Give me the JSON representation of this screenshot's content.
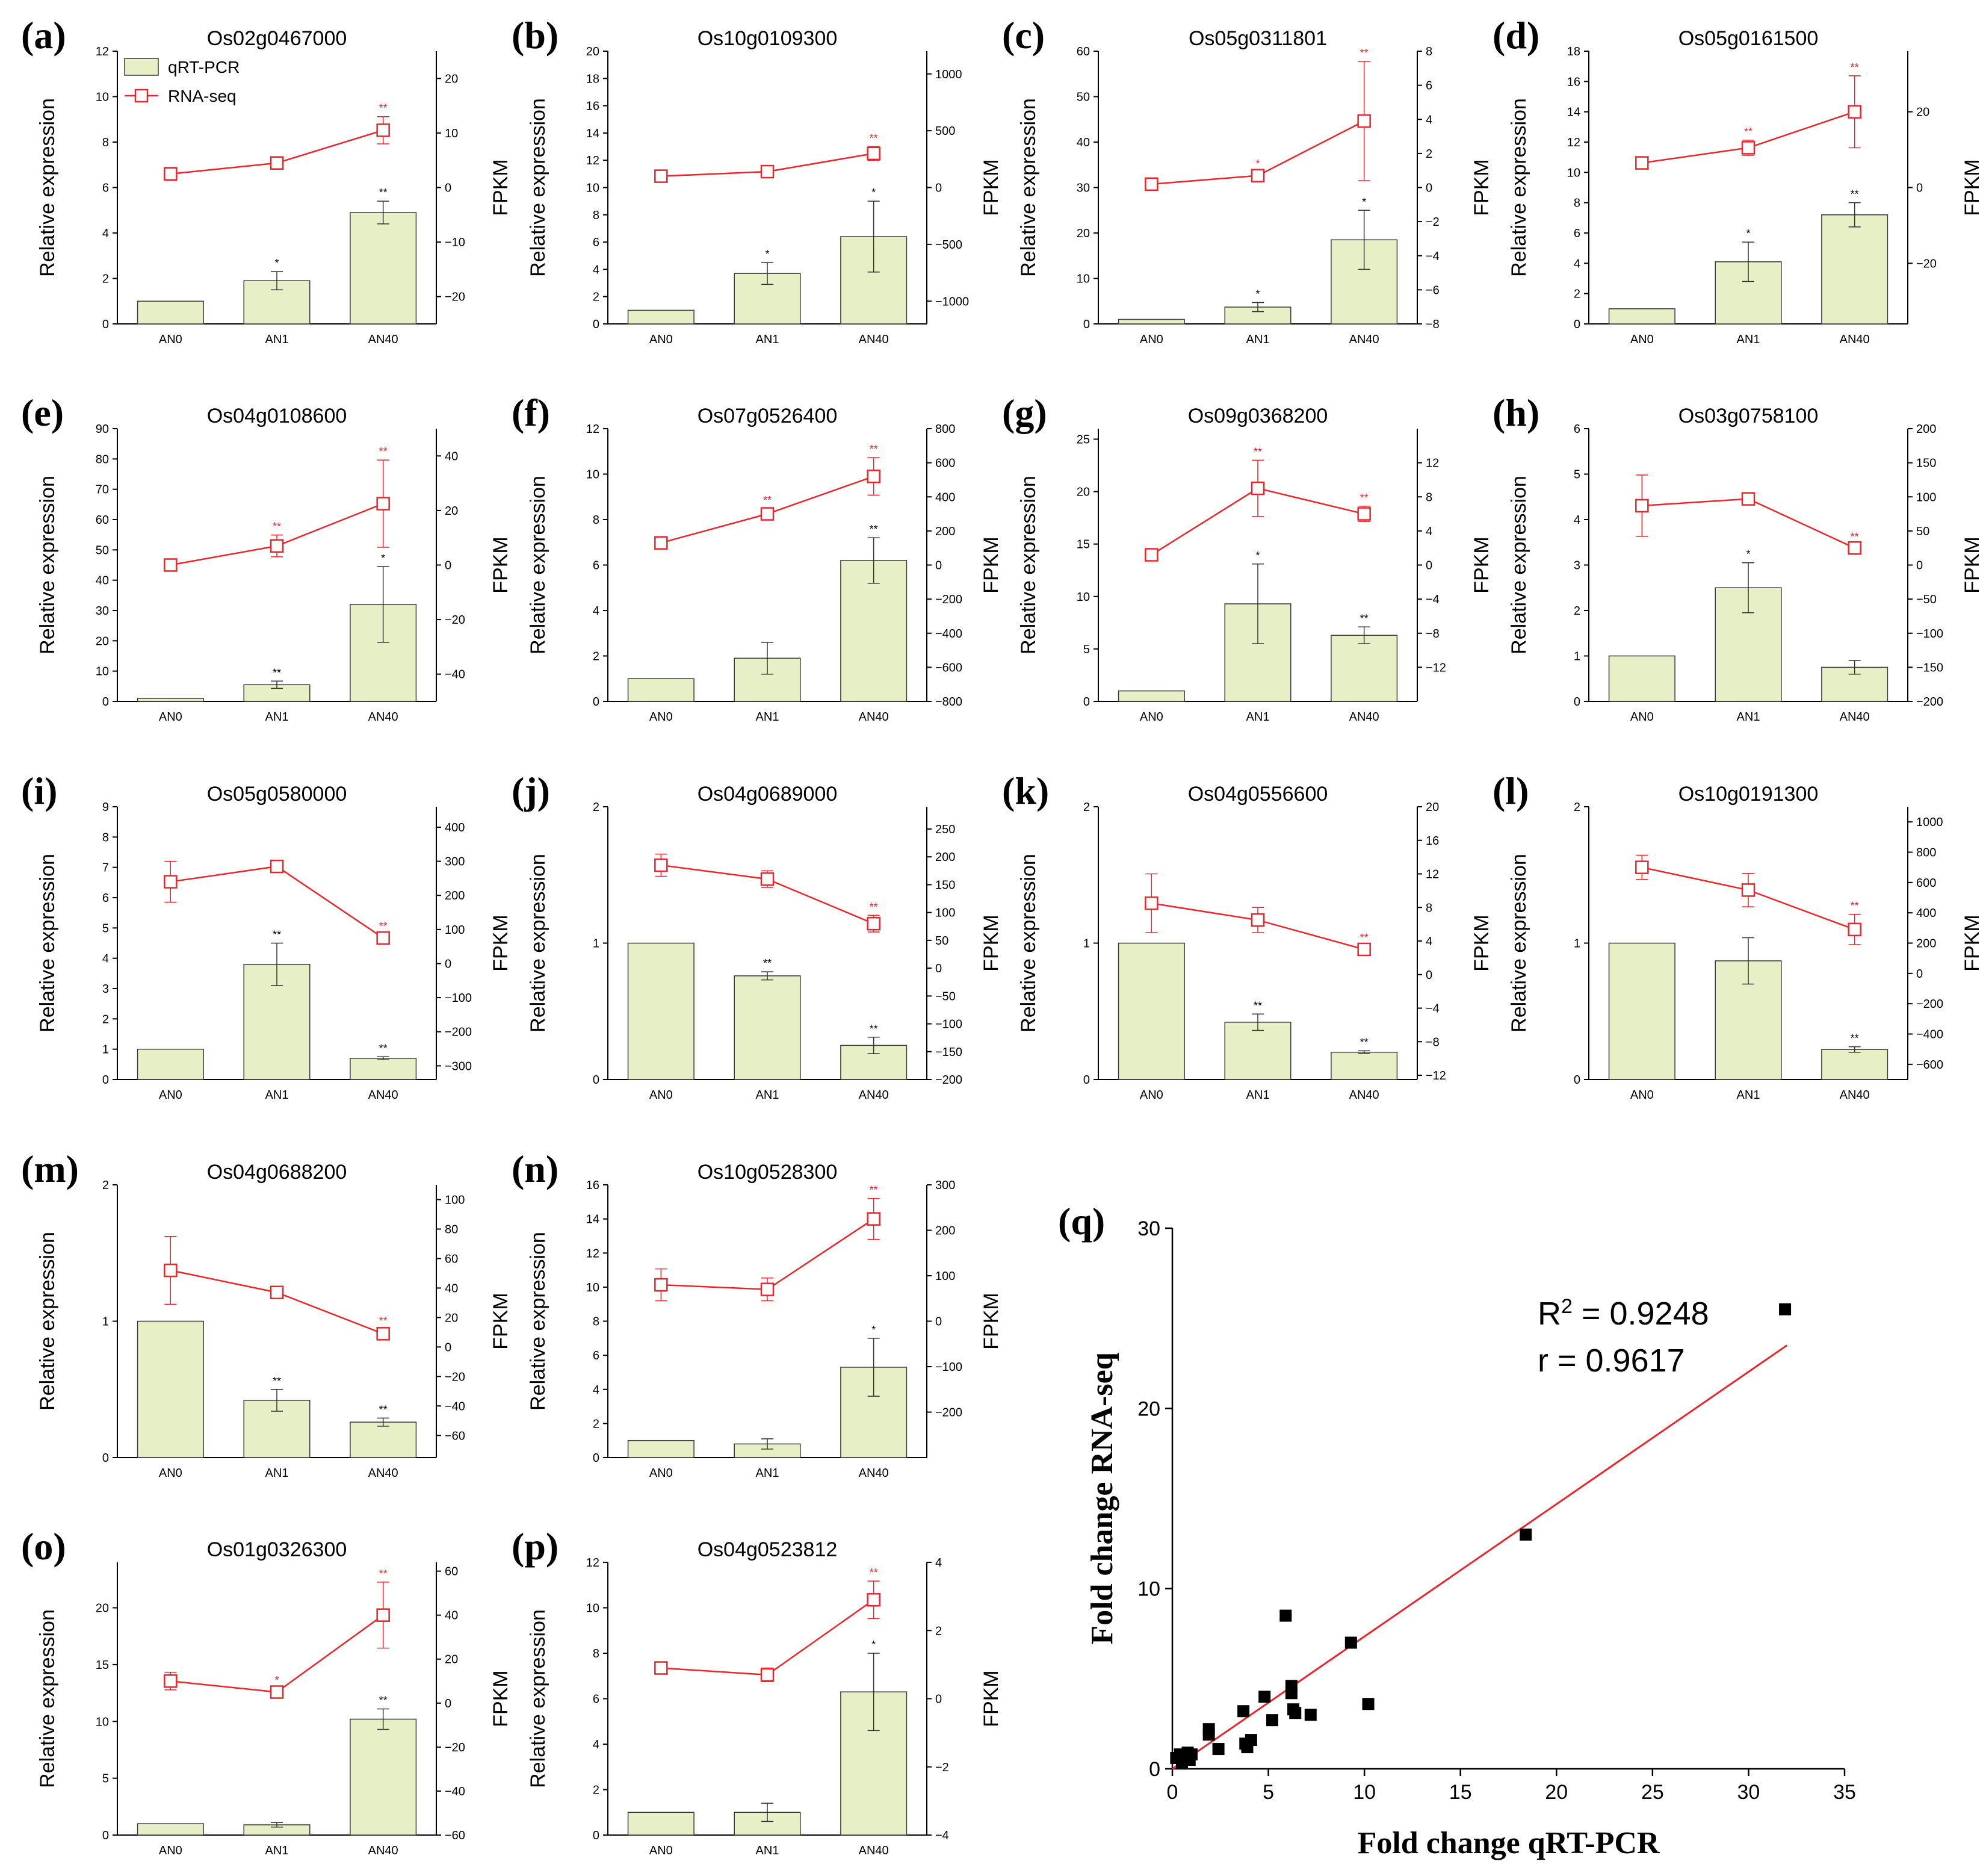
{
  "figure": {
    "y_left_label": "Relative expression",
    "y_right_label": "FPKM",
    "legend": {
      "bar_label": "qRT-PCR",
      "line_label": "RNA-seq"
    },
    "colors": {
      "bar_fill": "#e6efc6",
      "bar_stroke": "#3a3a3a",
      "line": "#e8262c"
    }
  },
  "chart_data": [
    {
      "type": "bar+line",
      "letter": "(a)",
      "title": "Os02g0467000",
      "categories": [
        "AN0",
        "AN1",
        "AN40"
      ],
      "left_axis": {
        "min": 0,
        "max": 12,
        "ticks": [
          0,
          2,
          4,
          6,
          8,
          10,
          12
        ]
      },
      "right_axis": {
        "min": -25,
        "max": 25,
        "ticks": [
          -20,
          -10,
          0,
          10,
          20
        ]
      },
      "bars": [
        1,
        1.9,
        4.9
      ],
      "bar_err": [
        0,
        0.4,
        0.5
      ],
      "bar_sig": [
        "",
        "*",
        "**"
      ],
      "line": [
        2.5,
        4.5,
        10.5
      ],
      "line_err": [
        1.2,
        0.8,
        2.5
      ],
      "line_sig": [
        "",
        "",
        "**"
      ],
      "legend": true
    },
    {
      "type": "bar+line",
      "letter": "(b)",
      "title": "Os10g0109300",
      "categories": [
        "AN0",
        "AN1",
        "AN40"
      ],
      "left_axis": {
        "min": 0,
        "max": 20,
        "ticks": [
          0,
          2,
          4,
          6,
          8,
          10,
          12,
          14,
          16,
          18,
          20
        ]
      },
      "right_axis": {
        "min": -1200,
        "max": 1200,
        "ticks": [
          -1000,
          -500,
          0,
          500,
          1000
        ]
      },
      "bars": [
        1,
        3.7,
        6.4
      ],
      "bar_err": [
        0,
        0.8,
        2.6
      ],
      "bar_sig": [
        "",
        "*",
        "*"
      ],
      "line": [
        100,
        140,
        300
      ],
      "line_err": [
        40,
        30,
        60
      ],
      "line_sig": [
        "",
        "",
        "**"
      ]
    },
    {
      "type": "bar+line",
      "letter": "(c)",
      "title": "Os05g0311801",
      "categories": [
        "AN0",
        "AN1",
        "AN40"
      ],
      "left_axis": {
        "min": 0,
        "max": 60,
        "ticks": [
          0,
          10,
          20,
          30,
          40,
          50,
          60
        ]
      },
      "right_axis": {
        "min": -8,
        "max": 8,
        "ticks": [
          -8,
          -6,
          -4,
          -2,
          0,
          2,
          4,
          6,
          8
        ]
      },
      "bars": [
        1,
        3.7,
        18.5
      ],
      "bar_err": [
        0,
        1,
        6.5
      ],
      "bar_sig": [
        "",
        "*",
        "*"
      ],
      "line": [
        0.2,
        0.7,
        3.9
      ],
      "line_err": [
        0.2,
        0.2,
        3.5
      ],
      "line_sig": [
        "",
        "*",
        "**"
      ]
    },
    {
      "type": "bar+line",
      "letter": "(d)",
      "title": "Os05g0161500",
      "categories": [
        "AN0",
        "AN1",
        "AN40"
      ],
      "left_axis": {
        "min": 0,
        "max": 18,
        "ticks": [
          0,
          2,
          4,
          6,
          8,
          10,
          12,
          14,
          16,
          18
        ]
      },
      "right_axis": {
        "min": -36,
        "max": 36,
        "ticks": [
          -20,
          0,
          20
        ]
      },
      "bars": [
        1,
        4.1,
        7.2
      ],
      "bar_err": [
        0,
        1.3,
        0.8
      ],
      "bar_sig": [
        "",
        "*",
        "**"
      ],
      "line": [
        6.5,
        10.5,
        20
      ],
      "line_err": [
        1.5,
        2,
        9.5
      ],
      "line_sig": [
        "",
        "**",
        "**"
      ]
    },
    {
      "type": "bar+line",
      "letter": "(e)",
      "title": "Os04g0108600",
      "categories": [
        "AN0",
        "AN1",
        "AN40"
      ],
      "left_axis": {
        "min": 0,
        "max": 90,
        "ticks": [
          0,
          10,
          20,
          30,
          40,
          50,
          60,
          70,
          80,
          90
        ]
      },
      "right_axis": {
        "min": -50,
        "max": 50,
        "ticks": [
          -40,
          -20,
          0,
          20,
          40
        ]
      },
      "bars": [
        1,
        5.5,
        32
      ],
      "bar_err": [
        0,
        1.2,
        12.5
      ],
      "bar_sig": [
        "",
        "**",
        "*"
      ],
      "line": [
        0,
        7,
        22.5
      ],
      "line_err": [
        1,
        4,
        16
      ],
      "line_sig": [
        "",
        "**",
        "**"
      ]
    },
    {
      "type": "bar+line",
      "letter": "(f)",
      "title": "Os07g0526400",
      "categories": [
        "AN0",
        "AN1",
        "AN40"
      ],
      "left_axis": {
        "min": 0,
        "max": 12,
        "ticks": [
          0,
          2,
          4,
          6,
          8,
          10,
          12
        ]
      },
      "right_axis": {
        "min": -800,
        "max": 800,
        "ticks": [
          -800,
          -600,
          -400,
          -200,
          0,
          200,
          400,
          600,
          800
        ]
      },
      "bars": [
        1,
        1.9,
        6.2
      ],
      "bar_err": [
        0,
        0.7,
        1
      ],
      "bar_sig": [
        "",
        "",
        "**"
      ],
      "line": [
        130,
        300,
        520
      ],
      "line_err": [
        20,
        30,
        110
      ],
      "line_sig": [
        "",
        "**",
        "**"
      ]
    },
    {
      "type": "bar+line",
      "letter": "(g)",
      "title": "Os09g0368200",
      "categories": [
        "AN0",
        "AN1",
        "AN40"
      ],
      "left_axis": {
        "min": 0,
        "max": 26,
        "ticks": [
          0,
          5,
          10,
          15,
          20,
          25
        ]
      },
      "right_axis": {
        "min": -16,
        "max": 16,
        "ticks": [
          -12,
          -8,
          -4,
          0,
          4,
          8,
          12
        ]
      },
      "bars": [
        1,
        9.3,
        6.3
      ],
      "bar_err": [
        0,
        3.8,
        0.8
      ],
      "bar_sig": [
        "",
        "*",
        "**"
      ],
      "line": [
        1.2,
        9,
        6
      ],
      "line_err": [
        0.4,
        3.3,
        0.9
      ],
      "line_sig": [
        "",
        "**",
        "**"
      ]
    },
    {
      "type": "bar+line",
      "letter": "(h)",
      "title": "Os03g0758100",
      "categories": [
        "AN0",
        "AN1",
        "AN40"
      ],
      "left_axis": {
        "min": 0,
        "max": 6,
        "ticks": [
          0,
          1,
          2,
          3,
          4,
          5,
          6
        ]
      },
      "right_axis": {
        "min": -200,
        "max": 200,
        "ticks": [
          -200,
          -150,
          -100,
          -50,
          0,
          50,
          100,
          150,
          200
        ]
      },
      "bars": [
        1,
        2.5,
        0.75
      ],
      "bar_err": [
        0,
        0.55,
        0.15
      ],
      "bar_sig": [
        "",
        "*",
        ""
      ],
      "line": [
        87,
        97,
        25
      ],
      "line_err": [
        45,
        6,
        4
      ],
      "line_sig": [
        "",
        "",
        "**"
      ]
    },
    {
      "type": "bar+line",
      "letter": "(i)",
      "title": "Os05g0580000",
      "categories": [
        "AN0",
        "AN1",
        "AN40"
      ],
      "left_axis": {
        "min": 0,
        "max": 9,
        "ticks": [
          0,
          1,
          2,
          3,
          4,
          5,
          6,
          7,
          8,
          9
        ]
      },
      "right_axis": {
        "min": -340,
        "max": 460,
        "ticks": [
          -300,
          -200,
          -100,
          0,
          100,
          200,
          300,
          400
        ]
      },
      "bars": [
        1,
        3.8,
        0.7
      ],
      "bar_err": [
        0,
        0.7,
        0.05
      ],
      "bar_sig": [
        "",
        "**",
        "**"
      ],
      "line": [
        240,
        285,
        75
      ],
      "line_err": [
        60,
        10,
        10
      ],
      "line_sig": [
        "",
        "",
        "**"
      ]
    },
    {
      "type": "bar+line",
      "letter": "(j)",
      "title": "Os04g0689000",
      "categories": [
        "AN0",
        "AN1",
        "AN40"
      ],
      "left_axis": {
        "min": 0,
        "max": 2,
        "ticks": [
          0,
          1,
          2
        ]
      },
      "right_axis": {
        "min": -200,
        "max": 290,
        "ticks": [
          -200,
          -150,
          -100,
          -50,
          0,
          50,
          100,
          150,
          200,
          250
        ]
      },
      "bars": [
        1,
        0.76,
        0.25
      ],
      "bar_err": [
        0,
        0.03,
        0.06
      ],
      "bar_sig": [
        "",
        "**",
        "**"
      ],
      "line": [
        185,
        160,
        80
      ],
      "line_err": [
        20,
        15,
        15
      ],
      "line_sig": [
        "",
        "",
        "**"
      ]
    },
    {
      "type": "bar+line",
      "letter": "(k)",
      "title": "Os04g0556600",
      "categories": [
        "AN0",
        "AN1",
        "AN40"
      ],
      "left_axis": {
        "min": 0,
        "max": 2,
        "ticks": [
          0,
          1,
          2
        ]
      },
      "right_axis": {
        "min": -12.5,
        "max": 20,
        "ticks": [
          -12,
          -8,
          -4,
          0,
          4,
          8,
          12,
          16,
          20
        ]
      },
      "bars": [
        1,
        0.42,
        0.2
      ],
      "bar_err": [
        0,
        0.06,
        0.01
      ],
      "bar_sig": [
        "",
        "**",
        "**"
      ],
      "line": [
        8.5,
        6.5,
        3
      ],
      "line_err": [
        3.5,
        1.5,
        0.4
      ],
      "line_sig": [
        "",
        "",
        "**"
      ]
    },
    {
      "type": "bar+line",
      "letter": "(l)",
      "title": "Os10g0191300",
      "categories": [
        "AN0",
        "AN1",
        "AN40"
      ],
      "left_axis": {
        "min": 0,
        "max": 2,
        "ticks": [
          0,
          1,
          2
        ]
      },
      "right_axis": {
        "min": -700,
        "max": 1100,
        "ticks": [
          -600,
          -400,
          -200,
          0,
          200,
          400,
          600,
          800,
          1000
        ]
      },
      "bars": [
        1,
        0.87,
        0.22
      ],
      "bar_err": [
        0,
        0.17,
        0.02
      ],
      "bar_sig": [
        "",
        "",
        "**"
      ],
      "line": [
        700,
        550,
        290
      ],
      "line_err": [
        80,
        110,
        100
      ],
      "line_sig": [
        "",
        "",
        "**"
      ]
    },
    {
      "type": "bar+line",
      "letter": "(m)",
      "title": "Os04g0688200",
      "categories": [
        "AN0",
        "AN1",
        "AN40"
      ],
      "left_axis": {
        "min": 0,
        "max": 2,
        "ticks": [
          0,
          1,
          2
        ]
      },
      "right_axis": {
        "min": -75,
        "max": 110,
        "ticks": [
          -60,
          -40,
          -20,
          0,
          20,
          40,
          60,
          80,
          100
        ]
      },
      "bars": [
        1,
        0.42,
        0.26
      ],
      "bar_err": [
        0,
        0.08,
        0.03
      ],
      "bar_sig": [
        "",
        "**",
        "**"
      ],
      "line": [
        52,
        37,
        9
      ],
      "line_err": [
        23,
        3,
        3
      ],
      "line_sig": [
        "",
        "",
        "**"
      ]
    },
    {
      "type": "bar+line",
      "letter": "(n)",
      "title": "Os10g0528300",
      "categories": [
        "AN0",
        "AN1",
        "AN40"
      ],
      "left_axis": {
        "min": 0,
        "max": 16,
        "ticks": [
          0,
          2,
          4,
          6,
          8,
          10,
          12,
          14,
          16
        ]
      },
      "right_axis": {
        "min": -300,
        "max": 300,
        "ticks": [
          -200,
          -100,
          0,
          100,
          200,
          300
        ]
      },
      "bars": [
        1,
        0.8,
        5.3
      ],
      "bar_err": [
        0,
        0.3,
        1.7
      ],
      "bar_sig": [
        "",
        "",
        "*"
      ],
      "line": [
        80,
        70,
        225
      ],
      "line_err": [
        35,
        25,
        45
      ],
      "line_sig": [
        "",
        "",
        "**"
      ]
    },
    {
      "type": "bar+line",
      "letter": "(o)",
      "title": "Os01g0326300",
      "categories": [
        "AN0",
        "AN1",
        "AN40"
      ],
      "left_axis": {
        "min": 0,
        "max": 24,
        "ticks": [
          0,
          5,
          10,
          15,
          20
        ]
      },
      "right_axis": {
        "min": -60,
        "max": 64,
        "ticks": [
          -60,
          -40,
          -20,
          0,
          20,
          40,
          60
        ]
      },
      "bars": [
        1,
        0.9,
        10.2
      ],
      "bar_err": [
        0,
        0.2,
        0.9
      ],
      "bar_sig": [
        "",
        "",
        "**"
      ],
      "line": [
        10,
        5,
        40
      ],
      "line_err": [
        4,
        1.5,
        15
      ],
      "line_sig": [
        "",
        "*",
        "**"
      ]
    },
    {
      "type": "bar+line",
      "letter": "(p)",
      "title": "Os04g0523812",
      "categories": [
        "AN0",
        "AN1",
        "AN40"
      ],
      "left_axis": {
        "min": 0,
        "max": 12,
        "ticks": [
          0,
          2,
          4,
          6,
          8,
          10,
          12
        ]
      },
      "right_axis": {
        "min": -4,
        "max": 4,
        "ticks": [
          -4,
          -2,
          0,
          2,
          4
        ]
      },
      "bars": [
        1,
        1,
        6.3
      ],
      "bar_err": [
        0,
        0.4,
        1.7
      ],
      "bar_sig": [
        "",
        "",
        "*"
      ],
      "line": [
        0.9,
        0.7,
        2.9
      ],
      "line_err": [
        0.15,
        0.2,
        0.55
      ],
      "line_sig": [
        "",
        "",
        "**"
      ]
    },
    {
      "type": "scatter",
      "letter": "(q)",
      "xlabel": "Fold change qRT-PCR",
      "ylabel": "Fold change RNA-seq",
      "xlim": [
        0,
        35
      ],
      "ylim": [
        0,
        30
      ],
      "xticks": [
        0,
        5,
        10,
        15,
        20,
        25,
        30,
        35
      ],
      "yticks": [
        0,
        10,
        20,
        30
      ],
      "r2_text": "R",
      "r2_sup": "2",
      "r2_value": " = 0.9248",
      "r_text": "r = 0.9617",
      "fit_line": {
        "x": [
          0,
          32
        ],
        "y": [
          0,
          23.5
        ]
      },
      "points": [
        [
          0.2,
          0.6
        ],
        [
          0.4,
          0.8
        ],
        [
          0.6,
          0.7
        ],
        [
          0.8,
          0.9
        ],
        [
          0.9,
          0.5
        ],
        [
          1.0,
          0.8
        ],
        [
          0.5,
          0.3
        ],
        [
          1.9,
          2.2
        ],
        [
          1.9,
          1.9
        ],
        [
          2.4,
          1.1
        ],
        [
          3.7,
          3.2
        ],
        [
          3.8,
          1.4
        ],
        [
          3.9,
          1.2
        ],
        [
          4.1,
          1.6
        ],
        [
          4.8,
          4.0
        ],
        [
          5.2,
          2.7
        ],
        [
          5.9,
          8.5
        ],
        [
          6.2,
          4.6
        ],
        [
          6.2,
          4.2
        ],
        [
          6.3,
          3.3
        ],
        [
          6.4,
          3.1
        ],
        [
          7.2,
          3.0
        ],
        [
          9.3,
          7.0
        ],
        [
          10.2,
          3.6
        ],
        [
          18.4,
          13.0
        ],
        [
          31.9,
          25.5
        ]
      ]
    }
  ]
}
